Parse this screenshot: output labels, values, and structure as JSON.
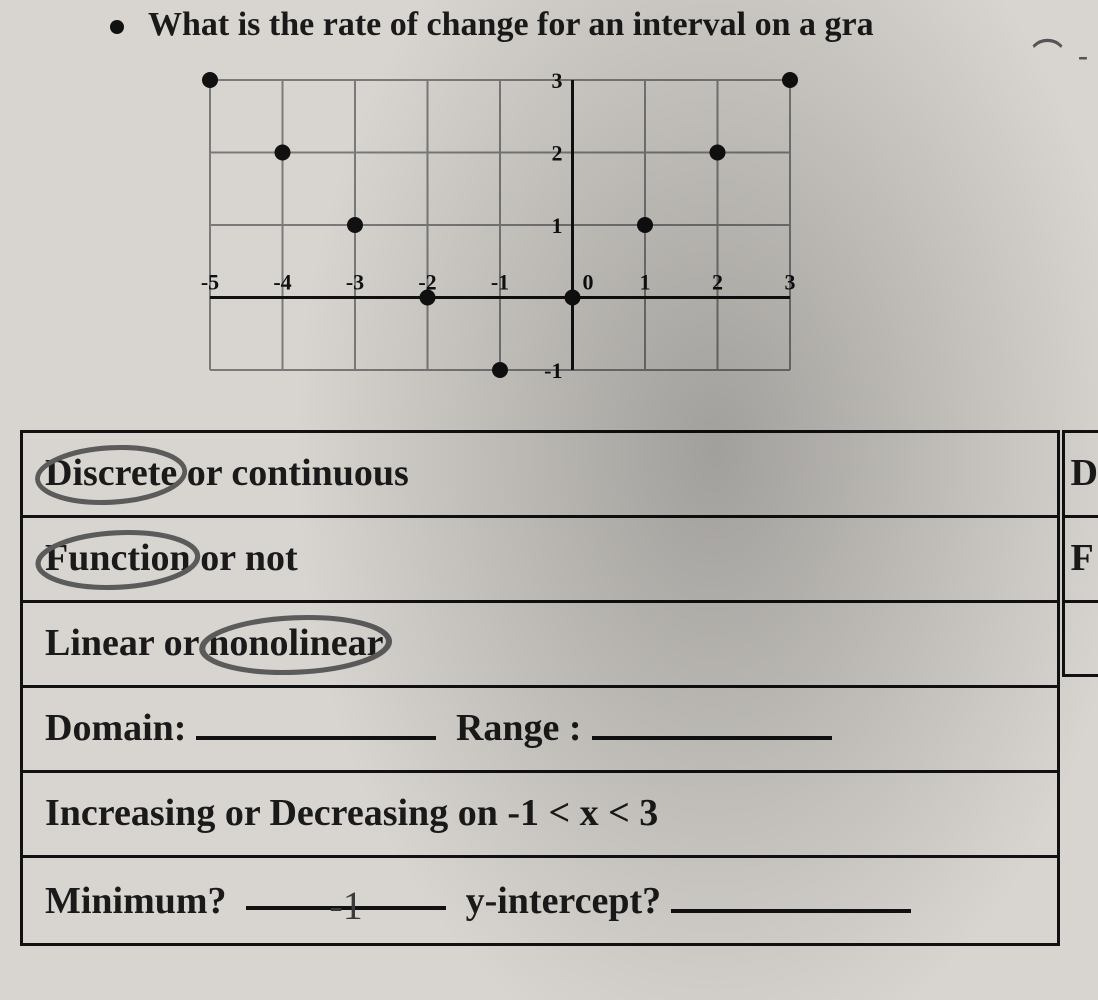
{
  "question": {
    "bullet_text": "What is the rate of change for an interval on a gra",
    "handwritten_trail": "⌒ -"
  },
  "chart": {
    "type": "scatter",
    "x_axis": {
      "min": -5,
      "max": 3,
      "ticks": [
        -5,
        -4,
        -3,
        -2,
        -1,
        0,
        1,
        2,
        3
      ]
    },
    "y_axis": {
      "min": -1,
      "max": 3,
      "ticks": [
        -1,
        1,
        2,
        3
      ]
    },
    "points": [
      {
        "x": -5,
        "y": 3
      },
      {
        "x": -4,
        "y": 2
      },
      {
        "x": -3,
        "y": 1
      },
      {
        "x": -2,
        "y": 0
      },
      {
        "x": -1,
        "y": -1
      },
      {
        "x": 0,
        "y": 0
      },
      {
        "x": 1,
        "y": 1
      },
      {
        "x": 2,
        "y": 2
      },
      {
        "x": 3,
        "y": 3
      }
    ],
    "colors": {
      "grid": "#7a7a7a",
      "axis": "#111111",
      "point": "#111111",
      "label": "#111111",
      "background": "transparent"
    },
    "style": {
      "marker_radius": 8,
      "line_width_grid": 2,
      "line_width_axis": 3,
      "label_fontsize": 22,
      "label_fontweight": "700"
    }
  },
  "table": {
    "rows": [
      {
        "kind": "choice",
        "options": [
          "Discrete",
          "continuous"
        ],
        "joiner": " or ",
        "circled_index": 0
      },
      {
        "kind": "choice",
        "options": [
          "Function",
          "not"
        ],
        "joiner": " or ",
        "circled_index": 0
      },
      {
        "kind": "choice",
        "options": [
          "Linear",
          "nonolinear"
        ],
        "joiner": " or ",
        "circled_index": 1
      },
      {
        "kind": "two_blank",
        "left_label": "Domain:",
        "right_label": "Range :"
      },
      {
        "kind": "text",
        "text": "Increasing or Decreasing on -1 < x < 3"
      },
      {
        "kind": "two_blank_ans",
        "left_label": "Minimum?",
        "left_answer": "-1",
        "right_label": "y-intercept?"
      }
    ]
  },
  "side_table": {
    "rows": [
      "D",
      "F",
      "",
      "",
      "",
      ""
    ]
  },
  "annotation_style": {
    "circle_stroke": "#5b5b5b",
    "circle_width": 3
  }
}
